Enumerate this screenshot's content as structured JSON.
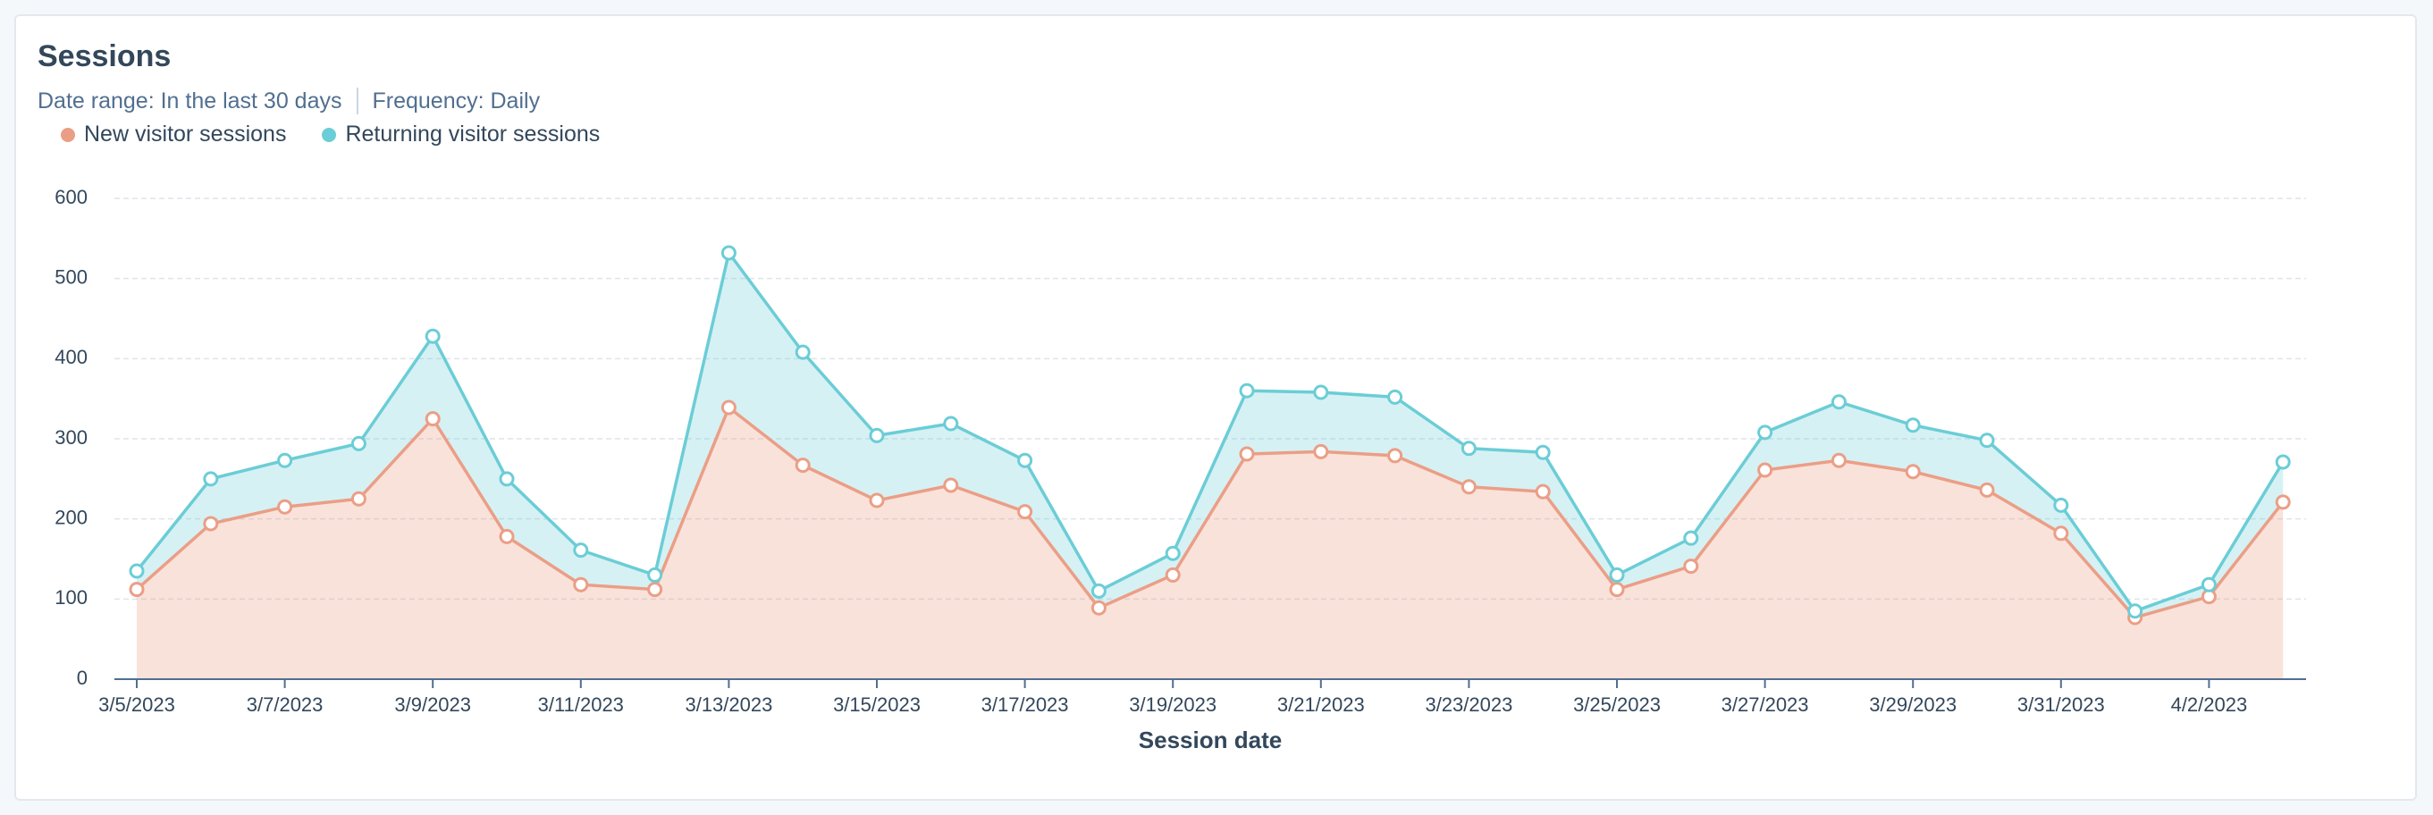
{
  "chart_data": {
    "type": "area",
    "stacked": true,
    "title": "Sessions",
    "date_range": "Date range: In the last 30 days",
    "frequency": "Frequency: Daily",
    "xlabel": "Session date",
    "categories": [
      "3/5/2023",
      null,
      "3/7/2023",
      null,
      "3/9/2023",
      null,
      "3/11/2023",
      null,
      "3/13/2023",
      null,
      "3/15/2023",
      null,
      "3/17/2023",
      null,
      "3/19/2023",
      null,
      "3/21/2023",
      null,
      "3/23/2023",
      null,
      "3/25/2023",
      null,
      "3/27/2023",
      null,
      "3/29/2023",
      null,
      "3/31/2023",
      null,
      "4/2/2023",
      null
    ],
    "series": [
      {
        "name": "New visitor sessions",
        "color": "#eb9e86",
        "values": [
          112,
          194,
          215,
          225,
          325,
          178,
          118,
          112,
          339,
          267,
          223,
          242,
          209,
          89,
          130,
          281,
          284,
          279,
          240,
          234,
          112,
          141,
          261,
          273,
          259,
          236,
          182,
          77,
          103,
          221
        ]
      },
      {
        "name": "Returning visitor sessions",
        "color": "#6bcdd6",
        "values": [
          23,
          56,
          58,
          69,
          103,
          72,
          43,
          18,
          193,
          141,
          81,
          77,
          64,
          21,
          27,
          79,
          74,
          73,
          48,
          49,
          18,
          35,
          47,
          73,
          58,
          62,
          35,
          8,
          15,
          50
        ]
      }
    ],
    "ylim": [
      0,
      600
    ],
    "yticks": [
      0,
      100,
      200,
      300,
      400,
      500,
      600
    ],
    "grid": true
  }
}
